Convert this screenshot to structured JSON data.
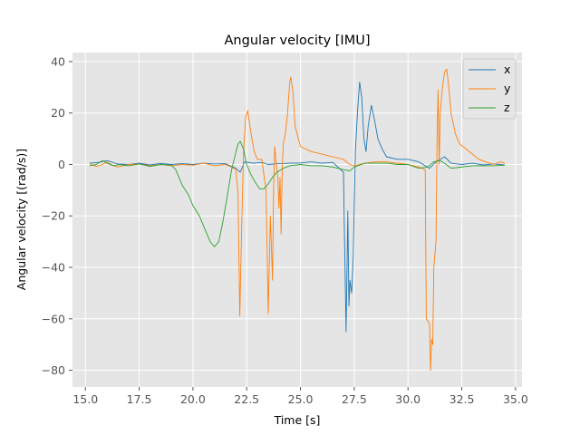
{
  "chart_data": {
    "type": "line",
    "title": "Angular velocity [IMU]",
    "xlabel": "Time [s]",
    "ylabel": "Angular velocity [(rad/s)]",
    "xlim": [
      14.4,
      35.3
    ],
    "ylim": [
      -86.5,
      43.5
    ],
    "xticks": [
      15.0,
      17.5,
      20.0,
      22.5,
      25.0,
      27.5,
      30.0,
      32.5,
      35.0
    ],
    "xtick_labels": [
      "15.0",
      "17.5",
      "20.0",
      "22.5",
      "25.0",
      "27.5",
      "30.0",
      "32.5",
      "35.0"
    ],
    "yticks": [
      40,
      20,
      0,
      -20,
      -40,
      -60,
      -80
    ],
    "ytick_labels": [
      "40",
      "20",
      "0",
      "−20",
      "−40",
      "−60",
      "−80"
    ],
    "grid": true,
    "legend_position": "top-right",
    "series": [
      {
        "name": "x",
        "color": "#1f77b4",
        "points": [
          [
            15.2,
            0.5
          ],
          [
            15.6,
            0.8
          ],
          [
            16.0,
            1.5
          ],
          [
            16.5,
            0.2
          ],
          [
            17.0,
            0.0
          ],
          [
            17.5,
            0.5
          ],
          [
            18.0,
            -0.2
          ],
          [
            18.5,
            0.4
          ],
          [
            19.0,
            0.0
          ],
          [
            19.5,
            0.3
          ],
          [
            20.0,
            0.0
          ],
          [
            20.5,
            0.5
          ],
          [
            21.0,
            0.2
          ],
          [
            21.5,
            0.3
          ],
          [
            22.0,
            -1.5
          ],
          [
            22.2,
            -3.0
          ],
          [
            22.4,
            1.0
          ],
          [
            22.8,
            0.5
          ],
          [
            23.2,
            0.8
          ],
          [
            23.5,
            0.0
          ],
          [
            24.0,
            0.3
          ],
          [
            24.5,
            0.5
          ],
          [
            25.0,
            0.6
          ],
          [
            25.5,
            1.0
          ],
          [
            26.0,
            0.5
          ],
          [
            26.5,
            0.8
          ],
          [
            27.0,
            -3.0
          ],
          [
            27.05,
            -30.0
          ],
          [
            27.12,
            -65.0
          ],
          [
            27.2,
            -18.0
          ],
          [
            27.25,
            -55.0
          ],
          [
            27.3,
            -45.0
          ],
          [
            27.38,
            -50.0
          ],
          [
            27.45,
            -37.0
          ],
          [
            27.55,
            5.0
          ],
          [
            27.65,
            20.0
          ],
          [
            27.75,
            32.0
          ],
          [
            27.85,
            26.0
          ],
          [
            27.95,
            10.0
          ],
          [
            28.05,
            5.0
          ],
          [
            28.15,
            15.0
          ],
          [
            28.3,
            23.0
          ],
          [
            28.45,
            17.0
          ],
          [
            28.6,
            10.0
          ],
          [
            28.8,
            6.0
          ],
          [
            29.0,
            3.0
          ],
          [
            29.5,
            2.0
          ],
          [
            30.0,
            2.0
          ],
          [
            30.5,
            1.0
          ],
          [
            31.0,
            -1.5
          ],
          [
            31.3,
            1.0
          ],
          [
            31.7,
            3.0
          ],
          [
            32.0,
            0.5
          ],
          [
            32.5,
            0.0
          ],
          [
            33.0,
            0.5
          ],
          [
            33.5,
            -0.2
          ],
          [
            34.0,
            0.2
          ],
          [
            34.5,
            -0.2
          ]
        ]
      },
      {
        "name": "y",
        "color": "#ff7f0e",
        "points": [
          [
            15.2,
            0.2
          ],
          [
            15.5,
            -0.8
          ],
          [
            15.8,
            0.0
          ],
          [
            16.0,
            1.0
          ],
          [
            16.2,
            0.0
          ],
          [
            16.5,
            -1.0
          ],
          [
            17.0,
            0.0
          ],
          [
            17.5,
            0.2
          ],
          [
            18.0,
            -0.5
          ],
          [
            18.5,
            0.0
          ],
          [
            19.0,
            -0.5
          ],
          [
            19.5,
            0.0
          ],
          [
            20.0,
            -0.3
          ],
          [
            20.5,
            0.5
          ],
          [
            21.0,
            -0.5
          ],
          [
            21.5,
            0.0
          ],
          [
            21.8,
            -1.0
          ],
          [
            22.0,
            -2.0
          ],
          [
            22.1,
            -12.0
          ],
          [
            22.18,
            -59.0
          ],
          [
            22.25,
            -30.0
          ],
          [
            22.35,
            5.0
          ],
          [
            22.45,
            18.0
          ],
          [
            22.55,
            21.0
          ],
          [
            22.7,
            12.0
          ],
          [
            22.85,
            5.0
          ],
          [
            23.0,
            2.0
          ],
          [
            23.2,
            2.0
          ],
          [
            23.4,
            -10.0
          ],
          [
            23.5,
            -58.0
          ],
          [
            23.55,
            -40.0
          ],
          [
            23.6,
            -20.0
          ],
          [
            23.7,
            -45.0
          ],
          [
            23.75,
            -10.0
          ],
          [
            23.8,
            7.0
          ],
          [
            23.85,
            2.0
          ],
          [
            23.95,
            -5.0
          ],
          [
            24.0,
            -17.0
          ],
          [
            24.05,
            -5.0
          ],
          [
            24.1,
            -27.0
          ],
          [
            24.15,
            -2.0
          ],
          [
            24.2,
            8.0
          ],
          [
            24.3,
            12.0
          ],
          [
            24.4,
            20.0
          ],
          [
            24.5,
            32.0
          ],
          [
            24.55,
            34.0
          ],
          [
            24.65,
            28.0
          ],
          [
            24.75,
            15.0
          ],
          [
            24.9,
            10.0
          ],
          [
            25.0,
            7.0
          ],
          [
            25.5,
            5.0
          ],
          [
            26.0,
            4.0
          ],
          [
            26.5,
            3.0
          ],
          [
            27.0,
            2.0
          ],
          [
            27.3,
            0.0
          ],
          [
            27.5,
            -0.5
          ],
          [
            28.0,
            0.5
          ],
          [
            28.5,
            1.0
          ],
          [
            29.0,
            1.0
          ],
          [
            29.5,
            0.5
          ],
          [
            30.0,
            0.0
          ],
          [
            30.5,
            -1.0
          ],
          [
            30.8,
            -2.0
          ],
          [
            30.85,
            -60.0
          ],
          [
            31.0,
            -62.0
          ],
          [
            31.05,
            -80.0
          ],
          [
            31.1,
            -68.0
          ],
          [
            31.15,
            -70.0
          ],
          [
            31.2,
            -40.0
          ],
          [
            31.3,
            -30.0
          ],
          [
            31.35,
            10.0
          ],
          [
            31.4,
            29.0
          ],
          [
            31.45,
            0.0
          ],
          [
            31.5,
            20.0
          ],
          [
            31.6,
            30.0
          ],
          [
            31.7,
            36.0
          ],
          [
            31.8,
            37.0
          ],
          [
            31.9,
            30.0
          ],
          [
            32.0,
            20.0
          ],
          [
            32.2,
            12.0
          ],
          [
            32.4,
            8.0
          ],
          [
            32.7,
            6.0
          ],
          [
            33.0,
            4.0
          ],
          [
            33.3,
            2.0
          ],
          [
            33.6,
            1.0
          ],
          [
            34.0,
            0.0
          ],
          [
            34.3,
            1.0
          ],
          [
            34.5,
            0.5
          ]
        ]
      },
      {
        "name": "z",
        "color": "#2ca02c",
        "points": [
          [
            15.2,
            -0.5
          ],
          [
            15.5,
            0.0
          ],
          [
            15.8,
            1.5
          ],
          [
            16.0,
            0.5
          ],
          [
            16.3,
            -0.5
          ],
          [
            16.6,
            0.0
          ],
          [
            17.0,
            -0.5
          ],
          [
            17.5,
            0.2
          ],
          [
            18.0,
            -0.8
          ],
          [
            18.5,
            0.0
          ],
          [
            19.0,
            -0.3
          ],
          [
            19.2,
            -2.0
          ],
          [
            19.5,
            -8.0
          ],
          [
            19.8,
            -12.0
          ],
          [
            20.0,
            -16.0
          ],
          [
            20.3,
            -20.0
          ],
          [
            20.6,
            -26.0
          ],
          [
            20.8,
            -30.0
          ],
          [
            21.0,
            -32.0
          ],
          [
            21.2,
            -30.0
          ],
          [
            21.4,
            -22.0
          ],
          [
            21.6,
            -12.0
          ],
          [
            21.8,
            -2.0
          ],
          [
            22.0,
            5.0
          ],
          [
            22.1,
            8.0
          ],
          [
            22.2,
            9.0
          ],
          [
            22.35,
            6.0
          ],
          [
            22.5,
            0.0
          ],
          [
            22.7,
            -4.0
          ],
          [
            22.9,
            -7.0
          ],
          [
            23.1,
            -9.5
          ],
          [
            23.3,
            -9.5
          ],
          [
            23.5,
            -7.5
          ],
          [
            23.7,
            -5.0
          ],
          [
            23.9,
            -3.0
          ],
          [
            24.2,
            -1.5
          ],
          [
            24.5,
            -0.5
          ],
          [
            25.0,
            0.0
          ],
          [
            25.5,
            -0.5
          ],
          [
            26.0,
            -0.5
          ],
          [
            26.5,
            -1.0
          ],
          [
            27.0,
            -2.0
          ],
          [
            27.3,
            -2.5
          ],
          [
            27.5,
            -1.0
          ],
          [
            28.0,
            0.5
          ],
          [
            28.5,
            0.5
          ],
          [
            29.0,
            0.5
          ],
          [
            29.5,
            0.0
          ],
          [
            30.0,
            0.0
          ],
          [
            30.5,
            -1.5
          ],
          [
            30.9,
            -1.0
          ],
          [
            31.2,
            1.0
          ],
          [
            31.5,
            1.5
          ],
          [
            31.7,
            0.5
          ],
          [
            32.0,
            -1.5
          ],
          [
            32.5,
            -1.0
          ],
          [
            33.0,
            -0.5
          ],
          [
            33.5,
            -0.5
          ],
          [
            34.0,
            -0.5
          ],
          [
            34.5,
            -0.3
          ]
        ]
      }
    ]
  }
}
